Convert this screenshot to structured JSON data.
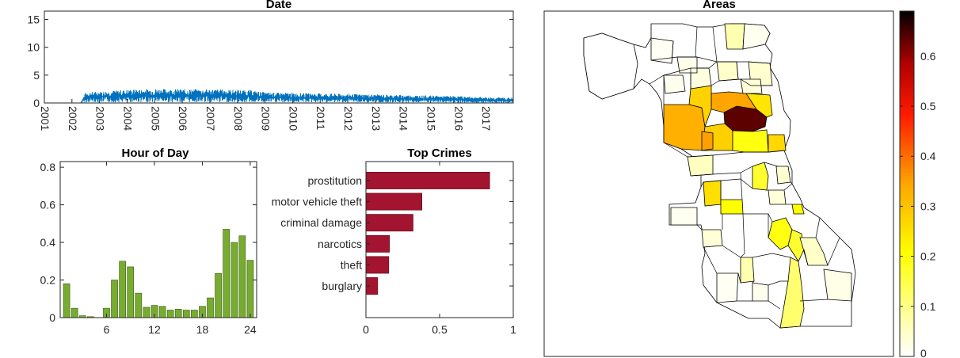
{
  "chart_data": [
    {
      "type": "line",
      "title": "Date",
      "ylim": [
        0,
        16.5
      ],
      "yticks": [
        "0",
        "5",
        "10",
        "15"
      ],
      "xlim": [
        2001,
        2018
      ],
      "xticks": [
        "2001",
        "2002",
        "2003",
        "2004",
        "2005",
        "2006",
        "2007",
        "2008",
        "2009",
        "2010",
        "2011",
        "2012",
        "2013",
        "2014",
        "2015",
        "2016",
        "2017"
      ],
      "series_color": "#0072BD",
      "series": [
        {
          "x": [
            2001.0,
            2002.3,
            2002.5,
            2003.0,
            2004.0,
            2005.0,
            2006.0,
            2007.0,
            2008.0,
            2008.5,
            2009.0,
            2010.0,
            2011.0,
            2012.0,
            2013.0,
            2014.0,
            2015.0,
            2016.0,
            2017.0,
            2018.0
          ],
          "values": [
            0.0,
            0.0,
            1.0,
            1.1,
            1.25,
            1.35,
            1.3,
            1.3,
            1.25,
            1.2,
            1.0,
            0.95,
            0.9,
            0.85,
            0.8,
            0.75,
            0.7,
            0.65,
            0.55,
            0.5
          ]
        }
      ],
      "grid": false
    },
    {
      "type": "bar",
      "title": "Hour of Day",
      "categories": [
        1,
        2,
        3,
        4,
        5,
        6,
        7,
        8,
        9,
        10,
        11,
        12,
        13,
        14,
        15,
        16,
        17,
        18,
        19,
        20,
        21,
        22,
        23,
        24
      ],
      "values": [
        0.18,
        0.05,
        0.01,
        0.005,
        0.0,
        0.05,
        0.2,
        0.3,
        0.27,
        0.13,
        0.055,
        0.065,
        0.06,
        0.04,
        0.045,
        0.04,
        0.04,
        0.06,
        0.105,
        0.235,
        0.47,
        0.4,
        0.435,
        0.305
      ],
      "ylim": [
        0,
        0.83
      ],
      "yticks": [
        "0",
        "0.2",
        "0.4",
        "0.6",
        "0.8"
      ],
      "xticks": [
        "6",
        "12",
        "18",
        "24"
      ],
      "bar_color": "#77AC30",
      "grid": false
    },
    {
      "type": "bar",
      "orientation": "horizontal",
      "title": "Top Crimes",
      "categories": [
        "prostitution",
        "motor vehicle theft",
        "criminal damage",
        "narcotics",
        "theft",
        "burglary"
      ],
      "values": [
        0.84,
        0.38,
        0.32,
        0.16,
        0.155,
        0.08
      ],
      "xlim": [
        0,
        1
      ],
      "xticks": [
        "0",
        "0.5",
        "1"
      ],
      "bar_color": "#A2142F",
      "grid": false
    },
    {
      "type": "heatmap",
      "title": "Areas",
      "colormap": "hot (reversed)",
      "clim": [
        0,
        0.69
      ],
      "colorbar_ticks": [
        "0",
        "0.1",
        "0.2",
        "0.3",
        "0.4",
        "0.5",
        "0.6"
      ],
      "colorbar_location": "right"
    }
  ]
}
